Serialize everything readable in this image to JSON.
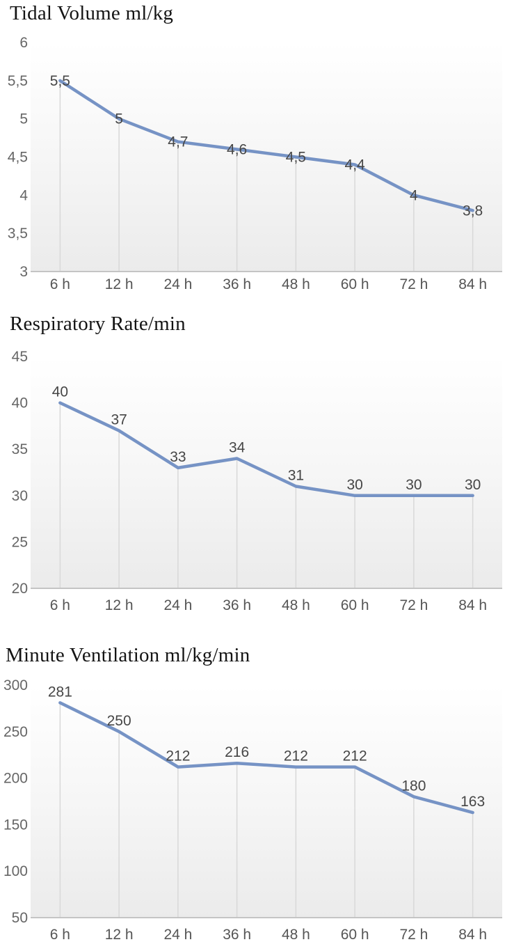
{
  "figure": {
    "background": "#ffffff",
    "description": "Three stacked line charts of ventilation parameters over time"
  },
  "styles": {
    "line_color": "#7693c5",
    "drop_line_color": "#d8d8d8",
    "axis_line_color": "#c4c4c4",
    "ytick_color": "#666666",
    "xtick_color": "#555555",
    "data_label_color": "#464646",
    "title_color": "#141414",
    "plot_bg_top": "#ffffff",
    "plot_bg_mid": "#f6f6f6",
    "plot_bg_bottom": "#ebebeb"
  },
  "chart_data": [
    {
      "type": "line",
      "title": "Tidal Volume ml/kg",
      "categories": [
        "6 h",
        "12 h",
        "24 h",
        "36 h",
        "48 h",
        "60 h",
        "72 h",
        "84 h"
      ],
      "values": [
        5.5,
        5,
        4.7,
        4.6,
        4.5,
        4.4,
        4,
        3.8
      ],
      "value_labels": [
        "5,5",
        "5",
        "4,7",
        "4,6",
        "4,5",
        "4,4",
        "4",
        "3,8"
      ],
      "yticks": [
        6,
        5.5,
        5,
        4.5,
        4,
        3.5,
        3
      ],
      "ytick_labels": [
        "6",
        "5,5",
        "5",
        "4,5",
        "4",
        "3,5",
        "3"
      ],
      "ylim": [
        3,
        6
      ],
      "xlabel": "",
      "ylabel": "",
      "legend": "none",
      "grid": "vertical-drop-lines",
      "data_label_position": "center"
    },
    {
      "type": "line",
      "title": "Respiratory Rate/min",
      "categories": [
        "6 h",
        "12 h",
        "24 h",
        "36 h",
        "48 h",
        "60 h",
        "72 h",
        "84 h"
      ],
      "values": [
        40,
        37,
        33,
        34,
        31,
        30,
        30,
        30
      ],
      "value_labels": [
        "40",
        "37",
        "33",
        "34",
        "31",
        "30",
        "30",
        "30"
      ],
      "yticks": [
        45,
        40,
        35,
        30,
        25,
        20
      ],
      "ytick_labels": [
        "45",
        "40",
        "35",
        "30",
        "25",
        "20"
      ],
      "ylim": [
        20,
        45
      ],
      "xlabel": "",
      "ylabel": "",
      "legend": "none",
      "grid": "vertical-drop-lines",
      "data_label_position": "above"
    },
    {
      "type": "line",
      "title": "Minute Ventilation ml/kg/min",
      "categories": [
        "6 h",
        "12 h",
        "24 h",
        "36 h",
        "48 h",
        "60 h",
        "72 h",
        "84 h"
      ],
      "values": [
        281,
        250,
        212,
        216,
        212,
        212,
        180,
        163
      ],
      "value_labels": [
        "281",
        "250",
        "212",
        "216",
        "212",
        "212",
        "180",
        "163"
      ],
      "yticks": [
        300,
        250,
        200,
        150,
        100,
        50
      ],
      "ytick_labels": [
        "300",
        "250",
        "200",
        "150",
        "100",
        "50"
      ],
      "ylim": [
        50,
        300
      ],
      "xlabel": "",
      "ylabel": "",
      "legend": "none",
      "grid": "vertical-drop-lines",
      "data_label_position": "above"
    }
  ]
}
